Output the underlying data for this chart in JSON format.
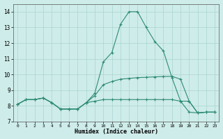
{
  "xlabel": "Humidex (Indice chaleur)",
  "x": [
    0,
    1,
    2,
    3,
    4,
    5,
    6,
    7,
    8,
    9,
    10,
    11,
    12,
    13,
    14,
    15,
    16,
    17,
    18,
    19,
    20,
    21,
    22,
    23
  ],
  "line1": [
    8.1,
    8.4,
    8.4,
    8.5,
    8.2,
    7.8,
    7.8,
    7.8,
    8.2,
    8.8,
    10.8,
    11.4,
    13.2,
    14.0,
    14.0,
    13.0,
    12.1,
    11.5,
    9.8,
    8.3,
    7.6,
    7.55,
    7.6,
    7.6
  ],
  "line2": [
    8.1,
    8.4,
    8.4,
    8.5,
    8.2,
    7.8,
    7.8,
    7.8,
    8.2,
    8.65,
    9.35,
    9.55,
    9.7,
    9.75,
    9.8,
    9.82,
    9.85,
    9.87,
    9.88,
    9.7,
    8.3,
    7.55,
    7.6,
    7.6
  ],
  "line3": [
    8.1,
    8.4,
    8.4,
    8.5,
    8.2,
    7.8,
    7.8,
    7.8,
    8.2,
    8.3,
    8.4,
    8.4,
    8.4,
    8.4,
    8.4,
    8.4,
    8.4,
    8.4,
    8.4,
    8.3,
    8.3,
    7.55,
    7.6,
    7.6
  ],
  "line_color": "#2e8b74",
  "bg_color": "#ceecea",
  "grid_color": "#aad4d0",
  "ylim": [
    7.0,
    14.5
  ],
  "yticks": [
    7,
    8,
    9,
    10,
    11,
    12,
    13,
    14
  ],
  "xlim": [
    -0.5,
    23.5
  ],
  "xticks": [
    0,
    1,
    2,
    3,
    4,
    5,
    6,
    7,
    8,
    9,
    10,
    11,
    12,
    13,
    14,
    15,
    16,
    17,
    18,
    19,
    20,
    21,
    22,
    23
  ]
}
